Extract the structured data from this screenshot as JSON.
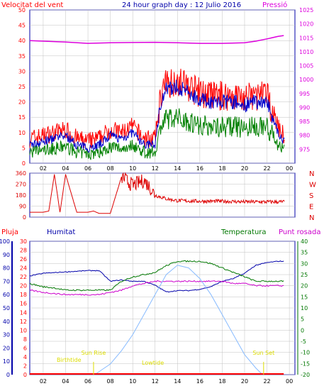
{
  "header": {
    "wind_label": "Velocitat del vent",
    "title": "24 hour graph day : 12 Julio 2016",
    "pressure_label": "Pressió"
  },
  "bottom_header": {
    "rain_label": "Pluja",
    "humidity_label": "Humitat",
    "temperature_label": "Temperatura",
    "dewpoint_label": "Punt rosada"
  },
  "colors": {
    "frame": "#0000aa",
    "grid": "#c0c0c0",
    "wind_speed": "#ff0000",
    "wind_avg": "#0000cc",
    "wind_gust_low": "#008000",
    "pressure": "#dd00dd",
    "direction": "#dd0000",
    "humidity": "#0000aa",
    "temperature": "#007700",
    "dewpoint": "#cc00cc",
    "solar": "#88bbff",
    "rain": "#ff0000",
    "sun_annotation": "#dddd00"
  },
  "chart_data": [
    {
      "type": "line",
      "title": "24 hour graph day : 12 Julio 2016",
      "x_ticks": [
        "02",
        "04",
        "06",
        "08",
        "10",
        "12",
        "14",
        "16",
        "18",
        "20",
        "22",
        "00"
      ],
      "y_left": {
        "label": "Velocitat del vent",
        "range": [
          0,
          50
        ],
        "ticks": [
          "0",
          "5",
          "10",
          "15",
          "20",
          "25",
          "30",
          "35",
          "40",
          "45",
          "50"
        ]
      },
      "y_right": {
        "label": "Pressió",
        "range": [
          970,
          1025
        ],
        "ticks": [
          "975",
          "980",
          "985",
          "990",
          "995",
          "1000",
          "1005",
          "1010",
          "1015",
          "1020",
          "1025"
        ]
      },
      "series": [
        {
          "name": "Velocitat del vent",
          "axis": "left",
          "hours": [
            0.8,
            2,
            3,
            4,
            5,
            6,
            7,
            8,
            9,
            10,
            11,
            12,
            12.5,
            13,
            14,
            15,
            16,
            17,
            18,
            19,
            20,
            21,
            22,
            23,
            23.5
          ],
          "values": [
            6,
            7,
            8,
            9,
            6,
            5,
            6,
            9,
            8,
            10,
            6,
            6,
            20,
            24,
            25,
            23,
            21,
            20,
            20,
            20,
            19,
            20,
            20,
            10,
            7
          ]
        },
        {
          "name": "Pressió",
          "axis": "right",
          "hours": [
            0.8,
            2,
            4,
            6,
            8,
            10,
            12,
            14,
            16,
            18,
            20,
            21,
            22,
            23,
            23.5
          ],
          "values": [
            1014.0,
            1013.8,
            1013.5,
            1013.0,
            1013.2,
            1013.3,
            1013.4,
            1013.2,
            1013.0,
            1013.0,
            1013.2,
            1013.8,
            1014.6,
            1015.5,
            1015.8
          ]
        }
      ]
    },
    {
      "type": "line",
      "x_ticks": [
        "02",
        "04",
        "06",
        "08",
        "10",
        "12",
        "14",
        "16",
        "18",
        "20",
        "22",
        "00"
      ],
      "y_left": {
        "range": [
          0,
          360
        ],
        "ticks": [
          "0",
          "90",
          "180",
          "270",
          "360"
        ]
      },
      "y_right": {
        "labels": [
          "N",
          "W",
          "S",
          "E",
          "N"
        ]
      },
      "series": [
        {
          "name": "direction",
          "hours": [
            0.8,
            1,
            2,
            2.5,
            3,
            3.5,
            4,
            5,
            6,
            6.5,
            7,
            8,
            9,
            10,
            11,
            11.5,
            12,
            13,
            14,
            16,
            18,
            20,
            22,
            23.5
          ],
          "values": [
            40,
            40,
            40,
            50,
            350,
            40,
            350,
            40,
            40,
            50,
            30,
            30,
            330,
            260,
            300,
            250,
            180,
            150,
            135,
            130,
            130,
            125,
            125,
            125
          ]
        }
      ]
    },
    {
      "type": "line",
      "x_ticks": [
        "02",
        "04",
        "06",
        "08",
        "10",
        "12",
        "14",
        "16",
        "18",
        "20",
        "22",
        "00"
      ],
      "y_axes": {
        "rain": {
          "label": "Pluja",
          "range": [
            0,
            100
          ],
          "ticks": [
            "0",
            "10",
            "20",
            "30",
            "40",
            "50",
            "60",
            "70",
            "80",
            "90",
            "100"
          ]
        },
        "humidity": {
          "label": "Humitat",
          "range": [
            0,
            30
          ],
          "ticks": [
            "0",
            "2",
            "4",
            "6",
            "8",
            "10",
            "12",
            "14",
            "16",
            "18",
            "20",
            "22",
            "24",
            "26",
            "28",
            "30"
          ]
        },
        "temperature": {
          "label": "Temperatura",
          "range": [
            -20,
            40
          ],
          "ticks": [
            "-20",
            "-15",
            "-10",
            "-5",
            "0",
            "5",
            "10",
            "15",
            "20",
            "25",
            "30",
            "35",
            "40"
          ]
        }
      },
      "annotations": [
        "Birthtide",
        "Sun Rise",
        "Lowtide",
        "Sun Set"
      ],
      "series": [
        {
          "name": "Humitat",
          "axis": "rain",
          "hours": [
            0.8,
            2,
            4,
            6,
            7,
            8,
            9,
            10,
            11,
            12,
            13,
            14,
            15,
            16,
            17,
            18,
            19,
            20,
            21,
            22,
            23,
            23.5
          ],
          "values": [
            74,
            76,
            77,
            78,
            78,
            70,
            71,
            70,
            70,
            67,
            62,
            63,
            63,
            64,
            66,
            70,
            72,
            76,
            82,
            84,
            85,
            85
          ]
        },
        {
          "name": "Temperatura",
          "axis": "temperature",
          "hours": [
            0.8,
            2,
            3,
            4,
            5,
            6,
            7,
            8,
            9,
            10,
            11,
            12,
            13,
            14,
            15,
            16,
            17,
            18,
            19,
            20,
            21,
            22,
            23.5
          ],
          "values": [
            21,
            19.5,
            19,
            18,
            18,
            18,
            18,
            18,
            22,
            24,
            25,
            26,
            29,
            31,
            31,
            31,
            30,
            28,
            26,
            24,
            22,
            22,
            22
          ]
        },
        {
          "name": "Punt rosada",
          "axis": "temperature",
          "hours": [
            0.8,
            2,
            4,
            6,
            7,
            8,
            9,
            10,
            11,
            12,
            13,
            14,
            15,
            16,
            17,
            18,
            19,
            20,
            21,
            22,
            23.5
          ],
          "values": [
            18,
            17,
            16,
            16,
            16,
            17,
            18,
            20,
            21,
            22,
            22,
            22,
            22,
            22,
            22,
            22,
            21,
            21,
            20,
            20,
            20
          ]
        },
        {
          "name": "solar",
          "axis": "rain",
          "hours": [
            6.6,
            8,
            9,
            10,
            11,
            12,
            13,
            14,
            15,
            16,
            17,
            18,
            19,
            20,
            21,
            21.6
          ],
          "values": [
            0,
            8,
            18,
            30,
            45,
            60,
            75,
            82,
            80,
            72,
            60,
            45,
            30,
            15,
            5,
            0
          ]
        },
        {
          "name": "Pluja",
          "axis": "rain",
          "hours": [
            0.8,
            23.5
          ],
          "values": [
            0,
            0
          ]
        }
      ]
    }
  ]
}
